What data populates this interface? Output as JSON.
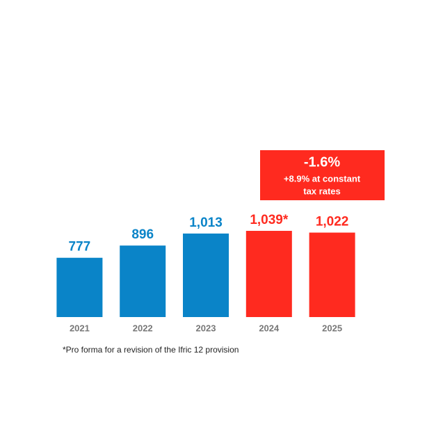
{
  "chart_data": {
    "type": "bar",
    "categories": [
      "2021",
      "2022",
      "2023",
      "2024",
      "2025"
    ],
    "values": [
      777,
      896,
      1013,
      1039,
      1022
    ],
    "value_labels": [
      "777",
      "896",
      "1,013",
      "1,039*",
      "1,022"
    ],
    "colors": [
      "#0a84c8",
      "#0a84c8",
      "#0a84c8",
      "#ff2a1f",
      "#ff2a1f"
    ],
    "ylim": [
      200,
      1100
    ],
    "annotation": {
      "title": "-1.6%",
      "lines": [
        "+8.9% at constant",
        "tax rates"
      ]
    },
    "footnote": "*Pro forma for a revision of the Ifric 12 provision"
  }
}
